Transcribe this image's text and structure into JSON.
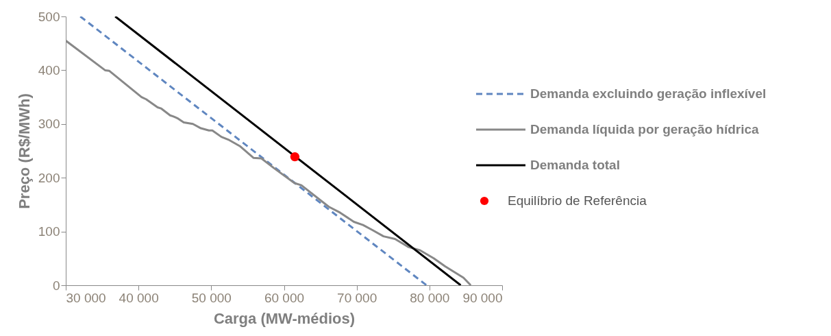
{
  "chart_data": {
    "type": "line",
    "xlabel": "Carga (MW-médios)",
    "ylabel": "Preço (R$/MWh)",
    "xlim": [
      30000,
      90000
    ],
    "ylim": [
      0,
      500
    ],
    "xticks": [
      {
        "value": 30000,
        "label": "30 000"
      },
      {
        "value": 40000,
        "label": "40 000"
      },
      {
        "value": 50000,
        "label": "50 000"
      },
      {
        "value": 60000,
        "label": "60 000"
      },
      {
        "value": 70000,
        "label": "70 000"
      },
      {
        "value": 80000,
        "label": "80 000"
      },
      {
        "value": 90000,
        "label": "90 000"
      }
    ],
    "yticks": [
      0,
      100,
      200,
      300,
      400,
      500
    ],
    "grid": false,
    "legend": "right",
    "series": [
      {
        "name": "Demanda excluindo geração inflexível",
        "type": "line",
        "line_style": "dashed",
        "color": "#5f86c0",
        "x": [
          32000,
          79600
        ],
        "values": [
          500,
          0
        ]
      },
      {
        "name": "Demanda líquida por geração hídrica",
        "type": "line",
        "line_style": "solid",
        "color": "#888888",
        "x": [
          30000,
          35400,
          35960,
          40420,
          41050,
          42620,
          43090,
          44350,
          44810,
          45440,
          46220,
          47480,
          48580,
          49680,
          50150,
          51400,
          52340,
          53920,
          55800,
          56900,
          58620,
          61450,
          62390,
          66160,
          67730,
          69610,
          70870,
          72120,
          73690,
          75270,
          77150,
          78710,
          80600,
          82170,
          84680,
          85680
        ],
        "values": [
          455,
          400,
          399,
          350,
          346,
          331,
          329,
          316,
          314,
          310,
          303,
          300,
          292,
          288,
          288,
          276,
          271,
          259,
          237,
          236,
          218,
          190,
          186,
          146,
          135,
          118,
          112,
          103,
          91,
          86,
          71,
          65,
          50,
          35,
          14,
          0
        ]
      },
      {
        "name": "Demanda total",
        "type": "line",
        "line_style": "solid",
        "color": "#000000",
        "x": [
          36800,
          84300
        ],
        "values": [
          500,
          0
        ]
      },
      {
        "name": "Equilíbrio de Referência",
        "type": "scatter",
        "marker": "circle",
        "color": "#ff0000",
        "x": [
          61500
        ],
        "values": [
          239
        ]
      }
    ]
  }
}
